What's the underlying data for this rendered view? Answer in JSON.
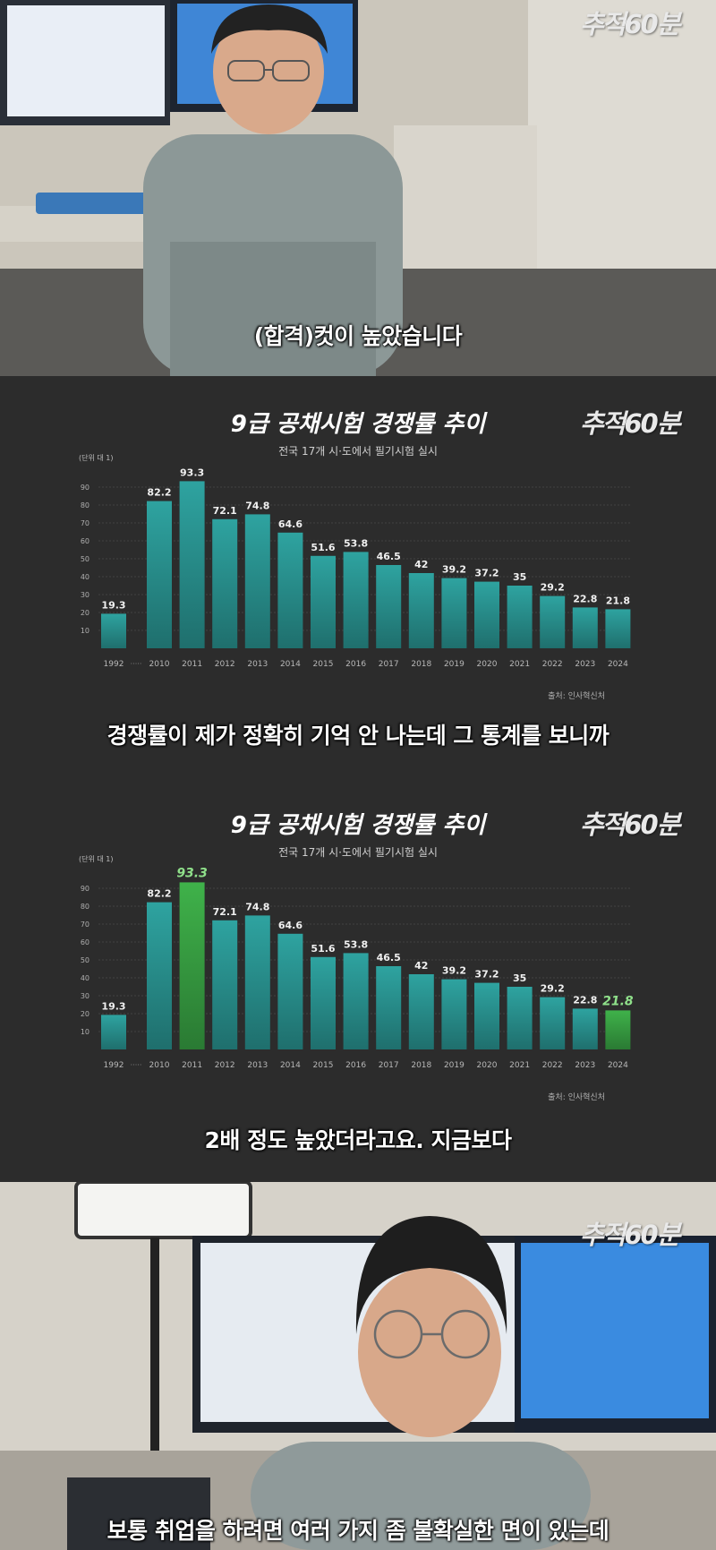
{
  "logo_text": "추적60분",
  "panels": {
    "p1": {
      "subtitle": "(합격)컷이 높았습니다"
    },
    "p2": {
      "subtitle": "경쟁률이 제가 정확히 기억 안 나는데 그 통계를 보니까"
    },
    "p3": {
      "subtitle": "2배 정도 높았더라고요. 지금보다"
    },
    "p4": {
      "subtitle": "보통 취업을 하려면 여러 가지 좀 불확실한 면이 있는데"
    }
  },
  "chart_data": {
    "type": "bar",
    "title": "9급 공채시험 경쟁률 추이",
    "subtitle": "전국 17개 시·도에서 필기시험 실시",
    "unit_label": "(단위 대 1)",
    "source": "출처: 인사혁신처",
    "categories": [
      "1992",
      "2010",
      "2011",
      "2012",
      "2013",
      "2014",
      "2015",
      "2016",
      "2017",
      "2018",
      "2019",
      "2020",
      "2021",
      "2022",
      "2023",
      "2024"
    ],
    "gap_label": "·····",
    "values": [
      19.3,
      82.2,
      93.3,
      72.1,
      74.8,
      64.6,
      51.6,
      53.8,
      46.5,
      42,
      39.2,
      37.2,
      35,
      29.2,
      22.8,
      21.8
    ],
    "yticks": [
      10,
      20,
      30,
      40,
      50,
      60,
      70,
      80,
      90
    ],
    "ylim": [
      0,
      100
    ],
    "grid": true,
    "bar_color": "#2ea3a0",
    "highlight_color": "#3fb24a",
    "highlight_second_panel": [
      "2011",
      "2024"
    ]
  }
}
